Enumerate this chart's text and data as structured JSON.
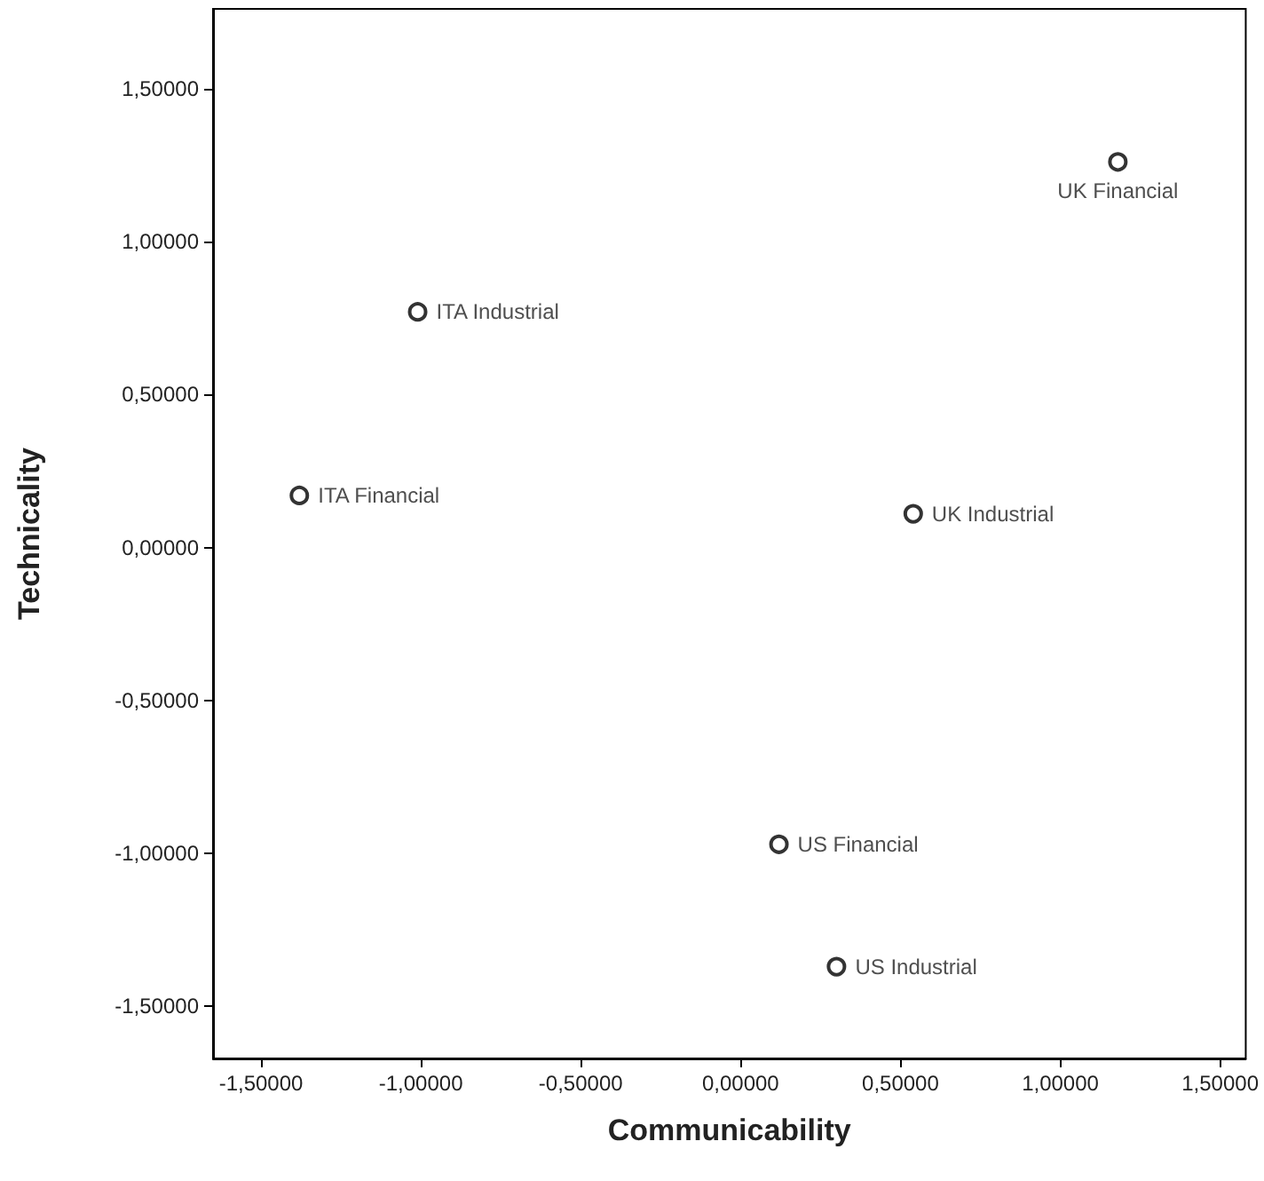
{
  "chart_data": {
    "type": "scatter",
    "xlabel": "Communicability",
    "ylabel": "Technicality",
    "marker": "circle",
    "grid": false,
    "xlim": [
      -1.65,
      1.58
    ],
    "ylim": [
      -1.67,
      1.76
    ],
    "xticks": [
      {
        "value": -1.5,
        "label": "-1,50000"
      },
      {
        "value": -1,
        "label": "-1,00000"
      },
      {
        "value": -0.5,
        "label": "-0,50000"
      },
      {
        "value": 0,
        "label": "0,00000"
      },
      {
        "value": 0.5,
        "label": "0,50000"
      },
      {
        "value": 1,
        "label": "1,00000"
      },
      {
        "value": 1.5,
        "label": "1,50000"
      }
    ],
    "yticks": [
      {
        "value": -1.5,
        "label": "-1,50000"
      },
      {
        "value": -1,
        "label": "-1,00000"
      },
      {
        "value": -0.5,
        "label": "-0,50000"
      },
      {
        "value": 0,
        "label": "0,00000"
      },
      {
        "value": 0.5,
        "label": "0,50000"
      },
      {
        "value": 1,
        "label": "1,00000"
      },
      {
        "value": 1.5,
        "label": "1,50000"
      }
    ],
    "series": [
      {
        "name": "UK Financial",
        "color": "#000000",
        "x": [
          1.18
        ],
        "values": [
          1.26
        ]
      },
      {
        "name": "ITA Industrial",
        "color": "#000000",
        "x": [
          -1.01
        ],
        "values": [
          0.77
        ]
      },
      {
        "name": "ITA Financial",
        "color": "#000000",
        "x": [
          -1.38
        ],
        "values": [
          0.17
        ]
      },
      {
        "name": "UK Industrial",
        "color": "#000000",
        "x": [
          0.54
        ],
        "values": [
          0.11
        ]
      },
      {
        "name": "US Financial",
        "color": "#000000",
        "x": [
          0.12
        ],
        "values": [
          -0.97
        ]
      },
      {
        "name": "US Industrial",
        "color": "#000000",
        "x": [
          0.3
        ],
        "values": [
          -1.37
        ]
      }
    ]
  }
}
